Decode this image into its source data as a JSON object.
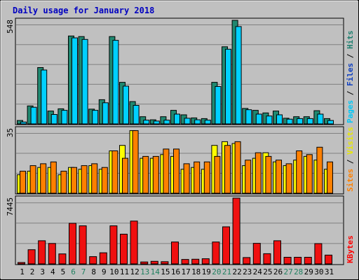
{
  "chart_data": {
    "type": "bar",
    "title": "Daily usage for January 2018",
    "days": [
      "1",
      "2",
      "3",
      "4",
      "5",
      "6",
      "7",
      "8",
      "9",
      "10",
      "11",
      "12",
      "13",
      "14",
      "15",
      "16",
      "17",
      "18",
      "19",
      "20",
      "21",
      "22",
      "23",
      "24",
      "25",
      "26",
      "27",
      "28",
      "29",
      "30",
      "31"
    ],
    "weekend_days": [
      6,
      7,
      13,
      14,
      20,
      21,
      27,
      28
    ],
    "panels": {
      "top": {
        "max_label": "548",
        "ylim": [
          0,
          548
        ],
        "series": [
          {
            "name": "Pages",
            "values": [
              18,
              95,
              298,
              68,
              80,
              465,
              462,
              78,
              128,
              462,
              220,
              118,
              38,
              22,
              38,
              72,
              48,
              32,
              28,
              220,
              408,
              548,
              82,
              72,
              58,
              68,
              30,
              38,
              38,
              70,
              28
            ]
          },
          {
            "name": "Files",
            "values": [
              10,
              88,
              285,
              50,
              72,
              455,
              447,
              72,
              112,
              442,
              200,
              98,
              20,
              15,
              20,
              52,
              30,
              22,
              20,
              198,
              395,
              515,
              75,
              52,
              42,
              48,
              25,
              28,
              28,
              52,
              18
            ]
          }
        ],
        "side_labels": [
          {
            "text": "Pages",
            "color": "#00c8f8"
          },
          {
            "text": " / ",
            "color": "#000000"
          },
          {
            "text": "Files",
            "color": "#1040c0"
          },
          {
            "text": " / ",
            "color": "#000000"
          },
          {
            "text": "Hits",
            "color": "#208070"
          }
        ],
        "colors": [
          "#208870",
          "#00d0ff"
        ]
      },
      "middle": {
        "max_label": "35",
        "ylim": [
          0,
          35
        ],
        "series": [
          {
            "name": "Sites",
            "values": [
              10,
              12,
              14,
              14,
              10,
              14,
              13,
              15,
              13,
              23,
              26,
              34,
              19,
              19,
              21,
              20,
              13,
              14,
              13,
              26,
              28,
              27,
              15,
              19,
              22,
              17,
              15,
              18,
              20,
              18,
              13
            ]
          },
          {
            "name": "Visits",
            "values": [
              12,
              15,
              16,
              17,
              12,
              14,
              15,
              16,
              14,
              23,
              19,
              34,
              20,
              20,
              24,
              24,
              16,
              17,
              17,
              20,
              26,
              28,
              18,
              22,
              20,
              18,
              16,
              23,
              21,
              25,
              17
            ]
          }
        ],
        "side_labels": [
          {
            "text": "Sites",
            "color": "#ff8000"
          },
          {
            "text": " / ",
            "color": "#000000"
          },
          {
            "text": "Visits",
            "color": "#e8e800"
          }
        ],
        "colors": [
          "#ffff00",
          "#ff8000"
        ]
      },
      "bottom": {
        "max_label": "7445",
        "ylim": [
          0,
          7445
        ],
        "series": [
          {
            "name": "KBytes",
            "values": [
              150,
              1610,
              2620,
              2310,
              1130,
              4590,
              4310,
              820,
              1260,
              4310,
              3370,
              4850,
              220,
              290,
              250,
              2480,
              510,
              530,
              590,
              2480,
              4200,
              7445,
              720,
              2330,
              1160,
              2620,
              750,
              750,
              750,
              2300,
              1000
            ]
          }
        ],
        "side_labels": [
          {
            "text": "KBytes",
            "color": "#ff0000"
          }
        ],
        "colors": [
          "#f01010"
        ]
      }
    }
  }
}
